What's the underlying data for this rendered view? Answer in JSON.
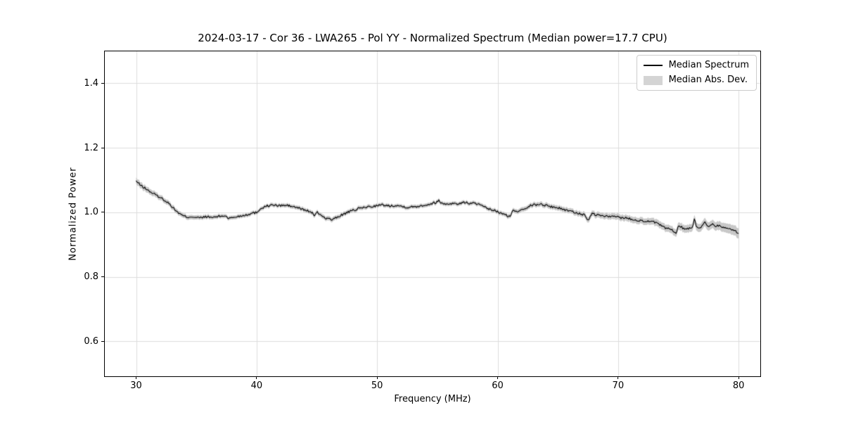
{
  "chart_data": {
    "type": "line",
    "title": "2024-03-17 - Cor 36 - LWA265 - Pol YY - Normalized Spectrum (Median power=17.7 CPU)",
    "xlabel": "Frequency (MHz)",
    "ylabel": "Normalized Power",
    "xlim": [
      27.4,
      81.8
    ],
    "ylim": [
      0.492,
      1.499
    ],
    "xticks": {
      "values": [
        30,
        40,
        50,
        60,
        70,
        80
      ],
      "labels": [
        "30",
        "40",
        "50",
        "60",
        "70",
        "80"
      ]
    },
    "yticks": {
      "values": [
        0.6,
        0.8,
        1.0,
        1.2,
        1.4
      ],
      "labels": [
        "0.6",
        "0.8",
        "1.0",
        "1.2",
        "1.4"
      ]
    },
    "grid": true,
    "legend": {
      "position": "upper right",
      "entries": [
        {
          "label": "Median Spectrum",
          "type": "line",
          "color": "#000000"
        },
        {
          "label": "Median Abs. Dev.",
          "type": "patch",
          "color": "#d4d4d4"
        }
      ]
    },
    "noise_amplitude": 0.0035,
    "noise_seed": 13,
    "sample_step": 0.08,
    "series": [
      {
        "name": "Median Spectrum",
        "type": "line",
        "color": "#000000",
        "points": [
          [
            30.0,
            1.097
          ],
          [
            30.2,
            1.09
          ],
          [
            30.4,
            1.083
          ],
          [
            30.7,
            1.076
          ],
          [
            31.0,
            1.068
          ],
          [
            31.3,
            1.061
          ],
          [
            31.6,
            1.055
          ],
          [
            31.9,
            1.048
          ],
          [
            32.2,
            1.042
          ],
          [
            32.5,
            1.034
          ],
          [
            32.8,
            1.025
          ],
          [
            33.1,
            1.013
          ],
          [
            33.4,
            1.002
          ],
          [
            33.7,
            0.993
          ],
          [
            34.0,
            0.988
          ],
          [
            34.3,
            0.985
          ],
          [
            34.6,
            0.987
          ],
          [
            35.0,
            0.984
          ],
          [
            35.4,
            0.983
          ],
          [
            35.8,
            0.987
          ],
          [
            36.2,
            0.984
          ],
          [
            36.6,
            0.986
          ],
          [
            37.0,
            0.988
          ],
          [
            37.4,
            0.99
          ],
          [
            37.7,
            0.981
          ],
          [
            38.0,
            0.984
          ],
          [
            38.4,
            0.987
          ],
          [
            38.8,
            0.99
          ],
          [
            39.2,
            0.993
          ],
          [
            39.6,
            0.997
          ],
          [
            40.0,
            1.0
          ],
          [
            40.3,
            1.011
          ],
          [
            40.7,
            1.018
          ],
          [
            41.0,
            1.021
          ],
          [
            41.4,
            1.023
          ],
          [
            41.8,
            1.02
          ],
          [
            42.2,
            1.022
          ],
          [
            42.6,
            1.021
          ],
          [
            43.0,
            1.018
          ],
          [
            43.4,
            1.014
          ],
          [
            43.8,
            1.01
          ],
          [
            44.2,
            1.005
          ],
          [
            44.6,
            1.0
          ],
          [
            44.8,
            0.988
          ],
          [
            45.0,
            1.0
          ],
          [
            45.3,
            0.994
          ],
          [
            45.6,
            0.984
          ],
          [
            46.0,
            0.98
          ],
          [
            46.3,
            0.977
          ],
          [
            46.7,
            0.985
          ],
          [
            47.1,
            0.993
          ],
          [
            47.5,
            0.999
          ],
          [
            48.0,
            1.006
          ],
          [
            48.5,
            1.012
          ],
          [
            49.0,
            1.016
          ],
          [
            49.5,
            1.018
          ],
          [
            50.0,
            1.021
          ],
          [
            50.5,
            1.023
          ],
          [
            51.0,
            1.02
          ],
          [
            51.5,
            1.022
          ],
          [
            52.0,
            1.019
          ],
          [
            52.5,
            1.016
          ],
          [
            53.0,
            1.017
          ],
          [
            53.5,
            1.02
          ],
          [
            54.0,
            1.023
          ],
          [
            54.5,
            1.027
          ],
          [
            54.9,
            1.031
          ],
          [
            55.1,
            1.037
          ],
          [
            55.4,
            1.027
          ],
          [
            55.8,
            1.026
          ],
          [
            56.2,
            1.028
          ],
          [
            56.6,
            1.026
          ],
          [
            57.0,
            1.029
          ],
          [
            57.4,
            1.031
          ],
          [
            57.8,
            1.027
          ],
          [
            58.1,
            1.029
          ],
          [
            58.5,
            1.023
          ],
          [
            59.0,
            1.014
          ],
          [
            59.4,
            1.009
          ],
          [
            59.8,
            1.005
          ],
          [
            60.2,
            0.998
          ],
          [
            60.6,
            0.993
          ],
          [
            61.0,
            0.986
          ],
          [
            61.3,
            1.006
          ],
          [
            61.6,
            1.002
          ],
          [
            62.0,
            1.01
          ],
          [
            62.4,
            1.015
          ],
          [
            62.8,
            1.022
          ],
          [
            63.2,
            1.024
          ],
          [
            63.6,
            1.025
          ],
          [
            64.0,
            1.022
          ],
          [
            64.4,
            1.018
          ],
          [
            64.8,
            1.016
          ],
          [
            65.2,
            1.012
          ],
          [
            65.6,
            1.008
          ],
          [
            66.0,
            1.005
          ],
          [
            66.4,
            1.0
          ],
          [
            66.8,
            0.997
          ],
          [
            67.2,
            0.991
          ],
          [
            67.5,
            0.972
          ],
          [
            67.8,
            0.997
          ],
          [
            68.2,
            0.992
          ],
          [
            68.6,
            0.99
          ],
          [
            69.0,
            0.988
          ],
          [
            69.4,
            0.986
          ],
          [
            69.8,
            0.988
          ],
          [
            70.2,
            0.984
          ],
          [
            70.6,
            0.983
          ],
          [
            71.0,
            0.98
          ],
          [
            71.4,
            0.977
          ],
          [
            71.8,
            0.975
          ],
          [
            72.2,
            0.973
          ],
          [
            72.6,
            0.971
          ],
          [
            73.0,
            0.97
          ],
          [
            73.4,
            0.962
          ],
          [
            73.8,
            0.953
          ],
          [
            74.2,
            0.95
          ],
          [
            74.5,
            0.944
          ],
          [
            74.8,
            0.933
          ],
          [
            75.0,
            0.962
          ],
          [
            75.3,
            0.953
          ],
          [
            75.6,
            0.948
          ],
          [
            76.0,
            0.952
          ],
          [
            76.2,
            0.955
          ],
          [
            76.35,
            0.986
          ],
          [
            76.5,
            0.955
          ],
          [
            76.8,
            0.951
          ],
          [
            77.2,
            0.968
          ],
          [
            77.5,
            0.956
          ],
          [
            77.8,
            0.966
          ],
          [
            78.1,
            0.957
          ],
          [
            78.4,
            0.96
          ],
          [
            78.7,
            0.953
          ],
          [
            79.0,
            0.951
          ],
          [
            79.4,
            0.947
          ],
          [
            79.7,
            0.945
          ],
          [
            80.0,
            0.932
          ]
        ]
      },
      {
        "name": "Median Abs. Dev.",
        "type": "band",
        "color": "#c8c8c8",
        "halfwidth_points": [
          [
            30,
            0.01
          ],
          [
            32,
            0.008
          ],
          [
            34,
            0.007
          ],
          [
            38,
            0.006
          ],
          [
            42,
            0.006
          ],
          [
            46,
            0.007
          ],
          [
            50,
            0.006
          ],
          [
            54,
            0.006
          ],
          [
            58,
            0.006
          ],
          [
            62,
            0.007
          ],
          [
            66,
            0.008
          ],
          [
            69,
            0.009
          ],
          [
            72,
            0.01
          ],
          [
            74,
            0.011
          ],
          [
            76,
            0.012
          ],
          [
            78,
            0.013
          ],
          [
            80,
            0.016
          ]
        ]
      }
    ]
  },
  "colors": {
    "grid": "#dcdcdc",
    "spine": "#000000",
    "line": "#000000",
    "band": "#c8c8c8",
    "background": "#ffffff"
  }
}
